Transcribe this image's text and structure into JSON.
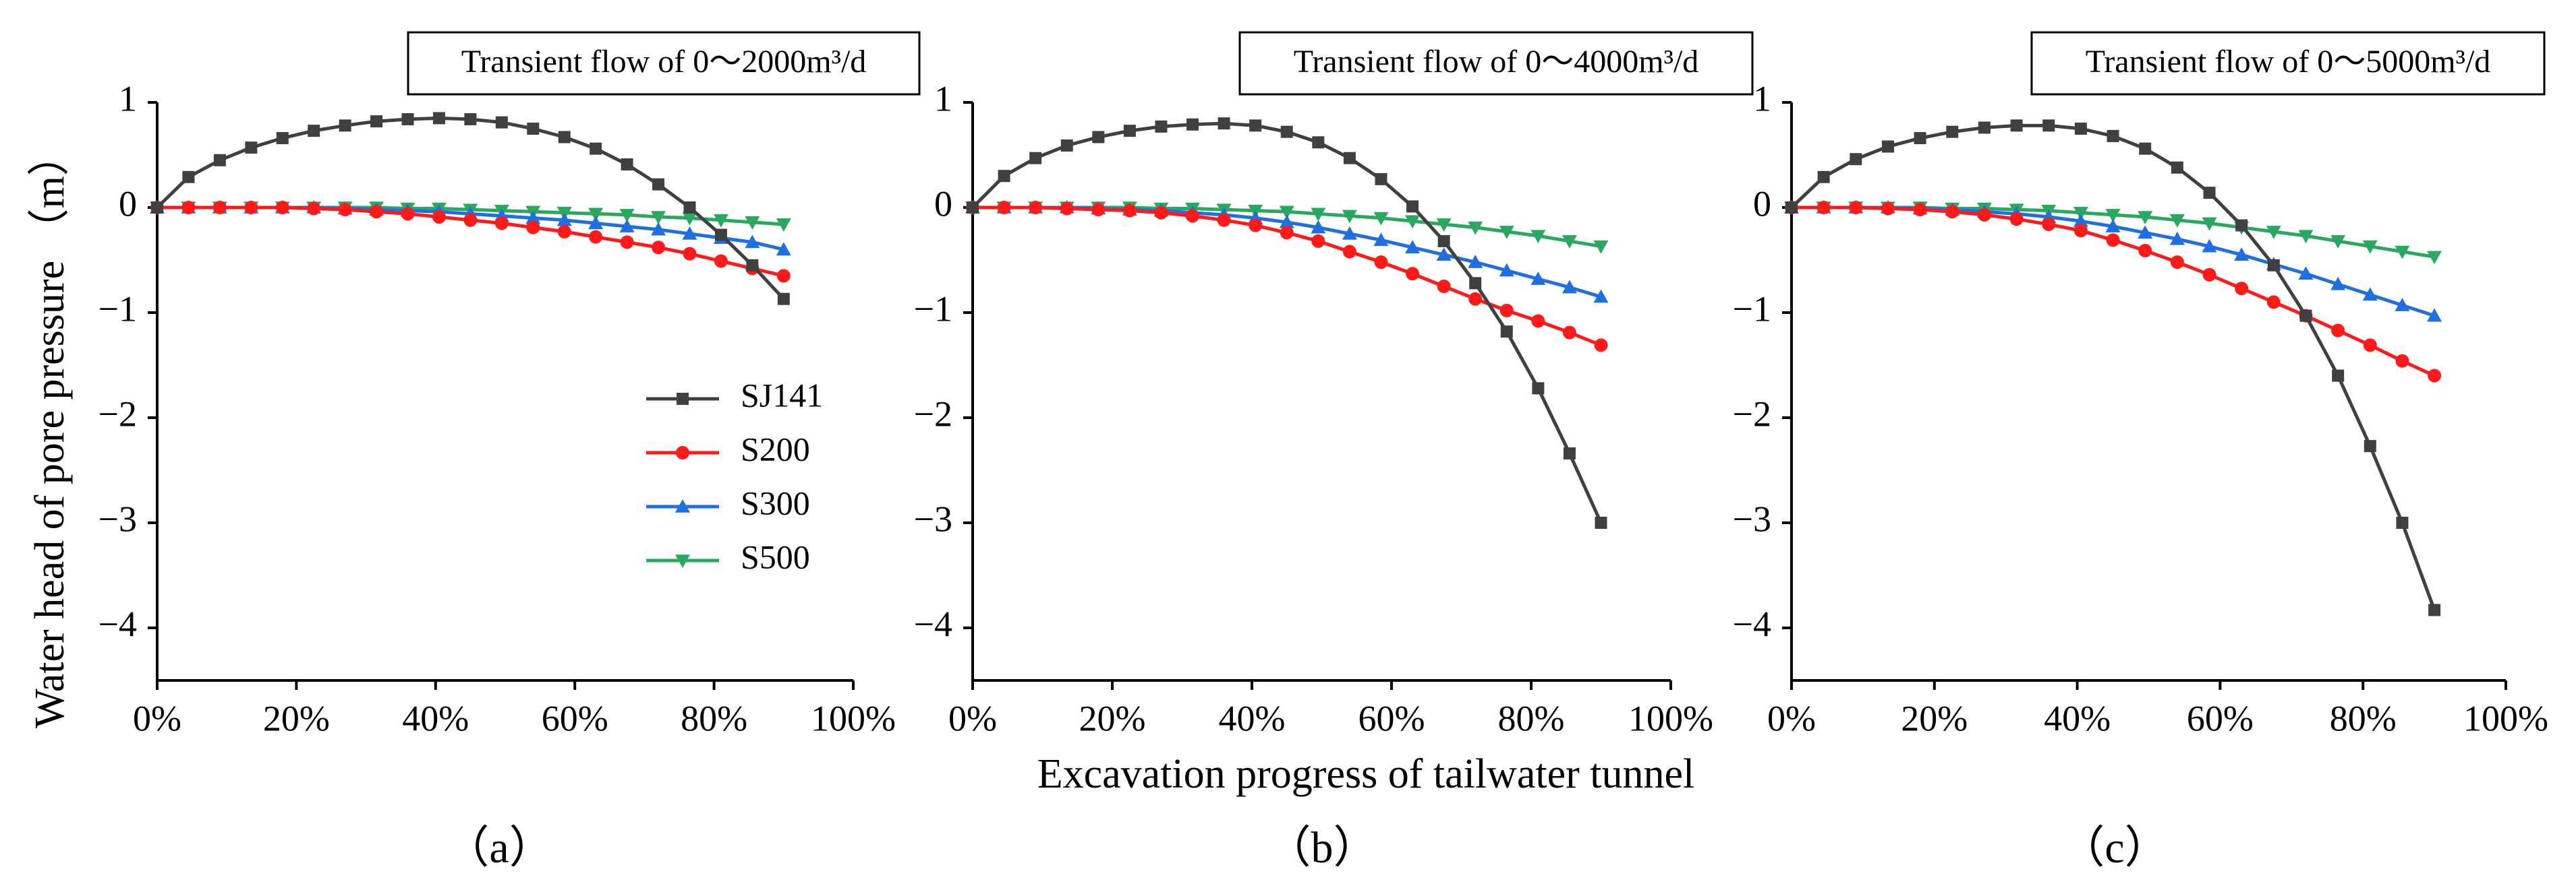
{
  "figure": {
    "ylabel": "Water head of pore pressure （m）",
    "xlabel": "Excavation progress of tailwater tunnel",
    "legend": [
      {
        "name": "SJ141",
        "color": "#404040",
        "marker": "square"
      },
      {
        "name": "S200",
        "color": "#ff1a1a",
        "marker": "circle"
      },
      {
        "name": "S300",
        "color": "#1f6fe0",
        "marker": "triangle-up"
      },
      {
        "name": "S500",
        "color": "#2aa860",
        "marker": "triangle-down"
      }
    ]
  },
  "chart_data": [
    {
      "type": "line",
      "panel_label": "（a）",
      "title": "Transient flow of 0～2000m³/d",
      "xlabel": "Excavation progress of tailwater tunnel",
      "ylabel": "Water head of pore pressure （m）",
      "xlim": [
        0,
        100
      ],
      "ylim": [
        -4.5,
        1
      ],
      "xticks": [
        0,
        20,
        40,
        60,
        80,
        100
      ],
      "xtick_labels": [
        "0%",
        "20%",
        "40%",
        "60%",
        "80%",
        "100%"
      ],
      "yticks": [
        1,
        0,
        -1,
        -2,
        -3,
        -4
      ],
      "ytick_labels": [
        "1",
        "0",
        "−1",
        "−2",
        "−3",
        "−4"
      ],
      "x": [
        0,
        4.5,
        9,
        13.5,
        18,
        22.5,
        27,
        31.5,
        36,
        40.5,
        45,
        49.5,
        54,
        58.5,
        63,
        67.5,
        72,
        76.5,
        81,
        85.5,
        90
      ],
      "series": [
        {
          "name": "SJ141",
          "values": [
            0,
            0.29,
            0.45,
            0.57,
            0.66,
            0.73,
            0.78,
            0.82,
            0.84,
            0.85,
            0.84,
            0.81,
            0.75,
            0.67,
            0.56,
            0.41,
            0.22,
            0,
            -0.26,
            -0.55,
            -0.87
          ]
        },
        {
          "name": "S200",
          "values": [
            0,
            0,
            0,
            0,
            0,
            -0.01,
            -0.02,
            -0.04,
            -0.06,
            -0.09,
            -0.12,
            -0.15,
            -0.19,
            -0.23,
            -0.28,
            -0.33,
            -0.38,
            -0.44,
            -0.51,
            -0.58,
            -0.65
          ]
        },
        {
          "name": "S300",
          "values": [
            0,
            0,
            0,
            0,
            0,
            0,
            -0.01,
            -0.02,
            -0.03,
            -0.04,
            -0.06,
            -0.08,
            -0.1,
            -0.12,
            -0.15,
            -0.18,
            -0.21,
            -0.25,
            -0.29,
            -0.33,
            -0.4
          ]
        },
        {
          "name": "S500",
          "values": [
            0,
            0,
            0,
            0,
            0,
            0,
            0,
            0,
            -0.01,
            -0.01,
            -0.02,
            -0.03,
            -0.04,
            -0.05,
            -0.06,
            -0.07,
            -0.09,
            -0.1,
            -0.12,
            -0.14,
            -0.16
          ]
        }
      ]
    },
    {
      "type": "line",
      "panel_label": "（b）",
      "title": "Transient flow of 0～4000m³/d",
      "xlabel": "Excavation progress of tailwater tunnel",
      "ylabel": "Water head of pore pressure （m）",
      "xlim": [
        0,
        100
      ],
      "ylim": [
        -4.5,
        1
      ],
      "xticks": [
        0,
        20,
        40,
        60,
        80,
        100
      ],
      "xtick_labels": [
        "0%",
        "20%",
        "40%",
        "60%",
        "80%",
        "100%"
      ],
      "yticks": [
        1,
        0,
        -1,
        -2,
        -3,
        -4
      ],
      "ytick_labels": [
        "1",
        "0",
        "−1",
        "−2",
        "−3",
        "−4"
      ],
      "x": [
        0,
        4.5,
        9,
        13.5,
        18,
        22.5,
        27,
        31.5,
        36,
        40.5,
        45,
        49.5,
        54,
        58.5,
        63,
        67.5,
        72,
        76.5,
        81,
        85.5,
        90
      ],
      "series": [
        {
          "name": "SJ141",
          "values": [
            0,
            0.3,
            0.47,
            0.59,
            0.67,
            0.73,
            0.77,
            0.79,
            0.8,
            0.78,
            0.72,
            0.62,
            0.47,
            0.27,
            0.01,
            -0.32,
            -0.72,
            -1.18,
            -1.72,
            -2.34,
            -3.0
          ]
        },
        {
          "name": "S200",
          "values": [
            0,
            0,
            0,
            -0.01,
            -0.02,
            -0.03,
            -0.05,
            -0.08,
            -0.12,
            -0.17,
            -0.24,
            -0.32,
            -0.42,
            -0.52,
            -0.63,
            -0.75,
            -0.87,
            -0.98,
            -1.08,
            -1.19,
            -1.31
          ]
        },
        {
          "name": "S300",
          "values": [
            0,
            0,
            0,
            0,
            -0.01,
            -0.02,
            -0.03,
            -0.05,
            -0.07,
            -0.1,
            -0.14,
            -0.19,
            -0.25,
            -0.31,
            -0.38,
            -0.45,
            -0.52,
            -0.6,
            -0.68,
            -0.76,
            -0.85
          ]
        },
        {
          "name": "S500",
          "values": [
            0,
            0,
            0,
            0,
            0,
            0,
            -0.01,
            -0.01,
            -0.02,
            -0.03,
            -0.04,
            -0.06,
            -0.08,
            -0.1,
            -0.13,
            -0.16,
            -0.19,
            -0.23,
            -0.27,
            -0.32,
            -0.37
          ]
        }
      ]
    },
    {
      "type": "line",
      "panel_label": "（c）",
      "title": "Transient flow of 0～5000m³/d",
      "xlabel": "Excavation progress of tailwater tunnel",
      "ylabel": "Water head of pore pressure （m）",
      "xlim": [
        0,
        100
      ],
      "ylim": [
        -4.5,
        1
      ],
      "xticks": [
        0,
        20,
        40,
        60,
        80,
        100
      ],
      "xtick_labels": [
        "0%",
        "20%",
        "40%",
        "60%",
        "80%",
        "100%"
      ],
      "yticks": [
        1,
        0,
        -1,
        -2,
        -3,
        -4
      ],
      "ytick_labels": [
        "1",
        "0",
        "−1",
        "−2",
        "−3",
        "−4"
      ],
      "x": [
        0,
        4.5,
        9,
        13.5,
        18,
        22.5,
        27,
        31.5,
        36,
        40.5,
        45,
        49.5,
        54,
        58.5,
        63,
        67.5,
        72,
        76.5,
        81,
        85.5,
        90
      ],
      "series": [
        {
          "name": "SJ141",
          "values": [
            0,
            0.29,
            0.46,
            0.58,
            0.66,
            0.72,
            0.76,
            0.78,
            0.78,
            0.75,
            0.68,
            0.56,
            0.38,
            0.14,
            -0.17,
            -0.55,
            -1.03,
            -1.6,
            -2.27,
            -3.0,
            -3.83
          ]
        },
        {
          "name": "S200",
          "values": [
            0,
            0,
            0,
            -0.01,
            -0.02,
            -0.04,
            -0.07,
            -0.11,
            -0.16,
            -0.22,
            -0.31,
            -0.41,
            -0.52,
            -0.64,
            -0.77,
            -0.9,
            -1.03,
            -1.17,
            -1.31,
            -1.46,
            -1.6
          ]
        },
        {
          "name": "S300",
          "values": [
            0,
            0,
            0,
            0,
            -0.01,
            -0.02,
            -0.04,
            -0.06,
            -0.09,
            -0.13,
            -0.18,
            -0.24,
            -0.3,
            -0.37,
            -0.45,
            -0.54,
            -0.63,
            -0.73,
            -0.83,
            -0.93,
            -1.03
          ]
        },
        {
          "name": "S500",
          "values": [
            0,
            0,
            0,
            0,
            0,
            -0.01,
            -0.01,
            -0.02,
            -0.03,
            -0.05,
            -0.07,
            -0.09,
            -0.12,
            -0.15,
            -0.19,
            -0.23,
            -0.27,
            -0.32,
            -0.37,
            -0.42,
            -0.47
          ]
        }
      ]
    }
  ]
}
